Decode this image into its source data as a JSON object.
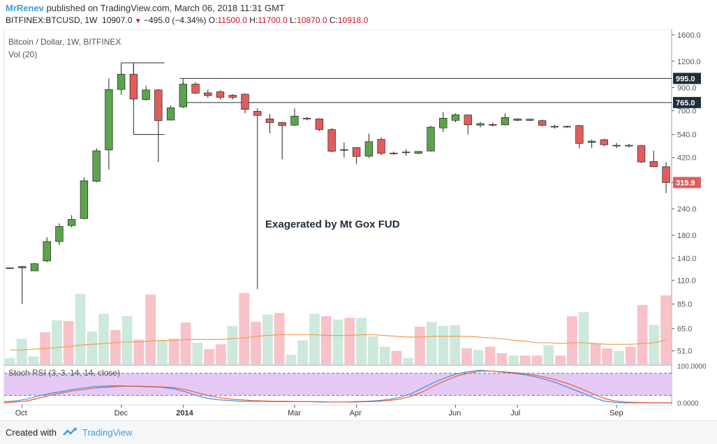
{
  "header": {
    "author": "MrRenev",
    "published_text": "published on TradingView.com, March 06, 2018 11:31 GMT",
    "symbol": "BITFINEX:BTCUSD, 1W",
    "last": "10907.0",
    "change": "−495.0 (−4.34%)",
    "o_label": "O:",
    "o_value": "11500.0",
    "h_label": "H:",
    "h_value": "11700.0",
    "l_label": "L:",
    "l_value": "10870.0",
    "c_label": "C:",
    "c_value": "10918.0"
  },
  "footer": {
    "created_with": "Created with",
    "brand": "TradingView"
  },
  "colors": {
    "bull": "#5ca34c",
    "bear": "#e05d5d",
    "vol_bull": "#cde9dc",
    "vol_bear": "#f7c2c8",
    "vol_ma": "#f39c51",
    "k_line": "#3d8fd6",
    "d_line": "#ef5a30",
    "rsi_band": "#e4c9f5",
    "author": "#3d9fd9"
  },
  "chart_data": [
    {
      "type": "candlestick",
      "title": "Bitcoin / Dollar, 1W, BITFINEX",
      "scale": "log",
      "y_ticks": [
        1600,
        1200,
        900,
        700,
        540,
        420,
        320,
        240,
        180,
        140,
        110,
        85,
        65,
        51
      ],
      "y_tick_labels": [
        "1600.0",
        "1200.0",
        "900.0",
        "700.0",
        "540.0",
        "420.0",
        "320.0",
        "240.0",
        "180.0",
        "140.0",
        "110.0",
        "85.0",
        "65.0",
        "51.0"
      ],
      "ylim": [
        44,
        1700
      ],
      "x_labels": [
        "Oct",
        "Dec",
        "2014",
        "Mar",
        "Apr",
        "Jun",
        "Jul",
        "Sep"
      ],
      "x_label_bold": [
        false,
        false,
        true,
        false,
        false,
        false,
        false,
        false
      ],
      "x_label_index": [
        1,
        9,
        14,
        23,
        28,
        36,
        41,
        49
      ],
      "price_labels": [
        {
          "value": 995,
          "text": "995.0",
          "color": "#1f2d3d"
        },
        {
          "value": 765,
          "text": "765.0",
          "color": "#1f2d3d"
        },
        {
          "value": 319.9,
          "text": "319.9",
          "color": "#e05d5d"
        }
      ],
      "h_lines": [
        995,
        765
      ],
      "annotation": "Exagerated by Mt Gox FUD",
      "candles": [
        {
          "o": 126,
          "h": 127,
          "l": 125,
          "c": 126
        },
        {
          "o": 126,
          "h": 129,
          "l": 85,
          "c": 128
        },
        {
          "o": 122,
          "h": 133,
          "l": 122,
          "c": 132
        },
        {
          "o": 136,
          "h": 176,
          "l": 134,
          "c": 168
        },
        {
          "o": 168,
          "h": 205,
          "l": 162,
          "c": 198
        },
        {
          "o": 200,
          "h": 224,
          "l": 196,
          "c": 214
        },
        {
          "o": 216,
          "h": 338,
          "l": 214,
          "c": 326
        },
        {
          "o": 324,
          "h": 465,
          "l": 320,
          "c": 452
        },
        {
          "o": 456,
          "h": 995,
          "l": 368,
          "c": 882
        },
        {
          "o": 882,
          "h": 1180,
          "l": 832,
          "c": 1042
        },
        {
          "o": 1042,
          "h": 1165,
          "l": 780,
          "c": 795
        },
        {
          "o": 790,
          "h": 920,
          "l": 780,
          "c": 878
        },
        {
          "o": 878,
          "h": 885,
          "l": 400,
          "c": 628
        },
        {
          "o": 632,
          "h": 740,
          "l": 630,
          "c": 722
        },
        {
          "o": 730,
          "h": 957,
          "l": 720,
          "c": 935
        },
        {
          "o": 935,
          "h": 955,
          "l": 840,
          "c": 848
        },
        {
          "o": 850,
          "h": 880,
          "l": 805,
          "c": 825
        },
        {
          "o": 860,
          "h": 875,
          "l": 790,
          "c": 810
        },
        {
          "o": 828,
          "h": 840,
          "l": 790,
          "c": 810
        },
        {
          "o": 838,
          "h": 845,
          "l": 680,
          "c": 710
        },
        {
          "o": 695,
          "h": 718,
          "l": 100,
          "c": 665
        },
        {
          "o": 640,
          "h": 675,
          "l": 548,
          "c": 615
        },
        {
          "o": 615,
          "h": 620,
          "l": 412,
          "c": 595
        },
        {
          "o": 598,
          "h": 718,
          "l": 592,
          "c": 660
        },
        {
          "o": 645,
          "h": 655,
          "l": 630,
          "c": 640
        },
        {
          "o": 640,
          "h": 645,
          "l": 560,
          "c": 570
        },
        {
          "o": 570,
          "h": 580,
          "l": 445,
          "c": 450
        },
        {
          "o": 458,
          "h": 495,
          "l": 420,
          "c": 455
        },
        {
          "o": 468,
          "h": 470,
          "l": 392,
          "c": 425
        },
        {
          "o": 426,
          "h": 545,
          "l": 418,
          "c": 500
        },
        {
          "o": 512,
          "h": 522,
          "l": 430,
          "c": 440
        },
        {
          "o": 441,
          "h": 448,
          "l": 433,
          "c": 440
        },
        {
          "o": 443,
          "h": 460,
          "l": 428,
          "c": 446
        },
        {
          "o": 440,
          "h": 450,
          "l": 436,
          "c": 449
        },
        {
          "o": 451,
          "h": 595,
          "l": 448,
          "c": 585
        },
        {
          "o": 580,
          "h": 690,
          "l": 555,
          "c": 645
        },
        {
          "o": 630,
          "h": 680,
          "l": 618,
          "c": 670
        },
        {
          "o": 668,
          "h": 672,
          "l": 540,
          "c": 600
        },
        {
          "o": 598,
          "h": 620,
          "l": 583,
          "c": 608
        },
        {
          "o": 602,
          "h": 615,
          "l": 590,
          "c": 598
        },
        {
          "o": 600,
          "h": 680,
          "l": 597,
          "c": 650
        },
        {
          "o": 640,
          "h": 645,
          "l": 625,
          "c": 630
        },
        {
          "o": 638,
          "h": 642,
          "l": 624,
          "c": 630
        },
        {
          "o": 628,
          "h": 635,
          "l": 590,
          "c": 597
        },
        {
          "o": 590,
          "h": 600,
          "l": 575,
          "c": 588
        },
        {
          "o": 590,
          "h": 595,
          "l": 580,
          "c": 590
        },
        {
          "o": 595,
          "h": 600,
          "l": 464,
          "c": 490
        },
        {
          "o": 495,
          "h": 512,
          "l": 465,
          "c": 502
        },
        {
          "o": 510,
          "h": 516,
          "l": 475,
          "c": 483
        },
        {
          "o": 480,
          "h": 493,
          "l": 465,
          "c": 478
        },
        {
          "o": 480,
          "h": 488,
          "l": 469,
          "c": 478
        },
        {
          "o": 478,
          "h": 482,
          "l": 395,
          "c": 400
        },
        {
          "o": 402,
          "h": 452,
          "l": 378,
          "c": 380
        },
        {
          "o": 380,
          "h": 400,
          "l": 285,
          "c": 320
        }
      ]
    },
    {
      "type": "bar",
      "title": "Vol (20)",
      "values": [
        8,
        32,
        10,
        40,
        55,
        54,
        88,
        41,
        63,
        43,
        60,
        31,
        87,
        30,
        32,
        52,
        27,
        19,
        25,
        48,
        89,
        53,
        62,
        64,
        12,
        30,
        63,
        60,
        56,
        58,
        58,
        35,
        22,
        17,
        8,
        47,
        53,
        48,
        49,
        20,
        18,
        22,
        14,
        11,
        11,
        11,
        24,
        11,
        60,
        65,
        26,
        20,
        17,
        22,
        74,
        49,
        86
      ],
      "ma_line": [
        18,
        18,
        19,
        20,
        21,
        22,
        24,
        25,
        26,
        27,
        28,
        28,
        29,
        30,
        30,
        31,
        31,
        31,
        31,
        32,
        33,
        35,
        36,
        37,
        37,
        37,
        37,
        36,
        36,
        36,
        37,
        37,
        36,
        35,
        34,
        34,
        35,
        35,
        35,
        35,
        34,
        33,
        32,
        30,
        29,
        27,
        27,
        26,
        27,
        27,
        26,
        25,
        25,
        25,
        26,
        27,
        30
      ],
      "ylim": [
        0,
        100
      ],
      "y_ticks": [
        100,
        85,
        65,
        51
      ]
    },
    {
      "type": "line",
      "title": "Stoch RSI (3, 3, 14, 14, close)",
      "ylim": [
        0,
        100
      ],
      "y_ticks": [
        100,
        0
      ],
      "y_tick_labels": [
        "100.0000",
        "0.0000"
      ],
      "bands": [
        80,
        20
      ],
      "series": [
        {
          "values": [
            3,
            5,
            10,
            18,
            25,
            30,
            36,
            40,
            44,
            45,
            46,
            45,
            44,
            43,
            42,
            38,
            30,
            20,
            12,
            8,
            6,
            4,
            4,
            4,
            3,
            3,
            3,
            3,
            2,
            2,
            2,
            3,
            4,
            6,
            9,
            15,
            25,
            40,
            55,
            68,
            78,
            84,
            88,
            86,
            83,
            80,
            76,
            70,
            62,
            52,
            40,
            28,
            15,
            5,
            1,
            0,
            0,
            0,
            0,
            0
          ]
        },
        {
          "values": [
            0,
            2,
            5,
            12,
            20,
            26,
            32,
            36,
            40,
            42,
            44,
            45,
            45,
            44,
            43,
            41,
            36,
            28,
            20,
            14,
            10,
            8,
            6,
            5,
            4,
            4,
            3,
            3,
            3,
            2,
            2,
            2,
            3,
            4,
            6,
            10,
            18,
            30,
            46,
            60,
            72,
            80,
            85,
            86,
            84,
            82,
            79,
            74,
            68,
            60,
            50,
            38,
            25,
            12,
            5,
            2,
            1,
            0,
            0,
            0
          ]
        }
      ]
    }
  ]
}
